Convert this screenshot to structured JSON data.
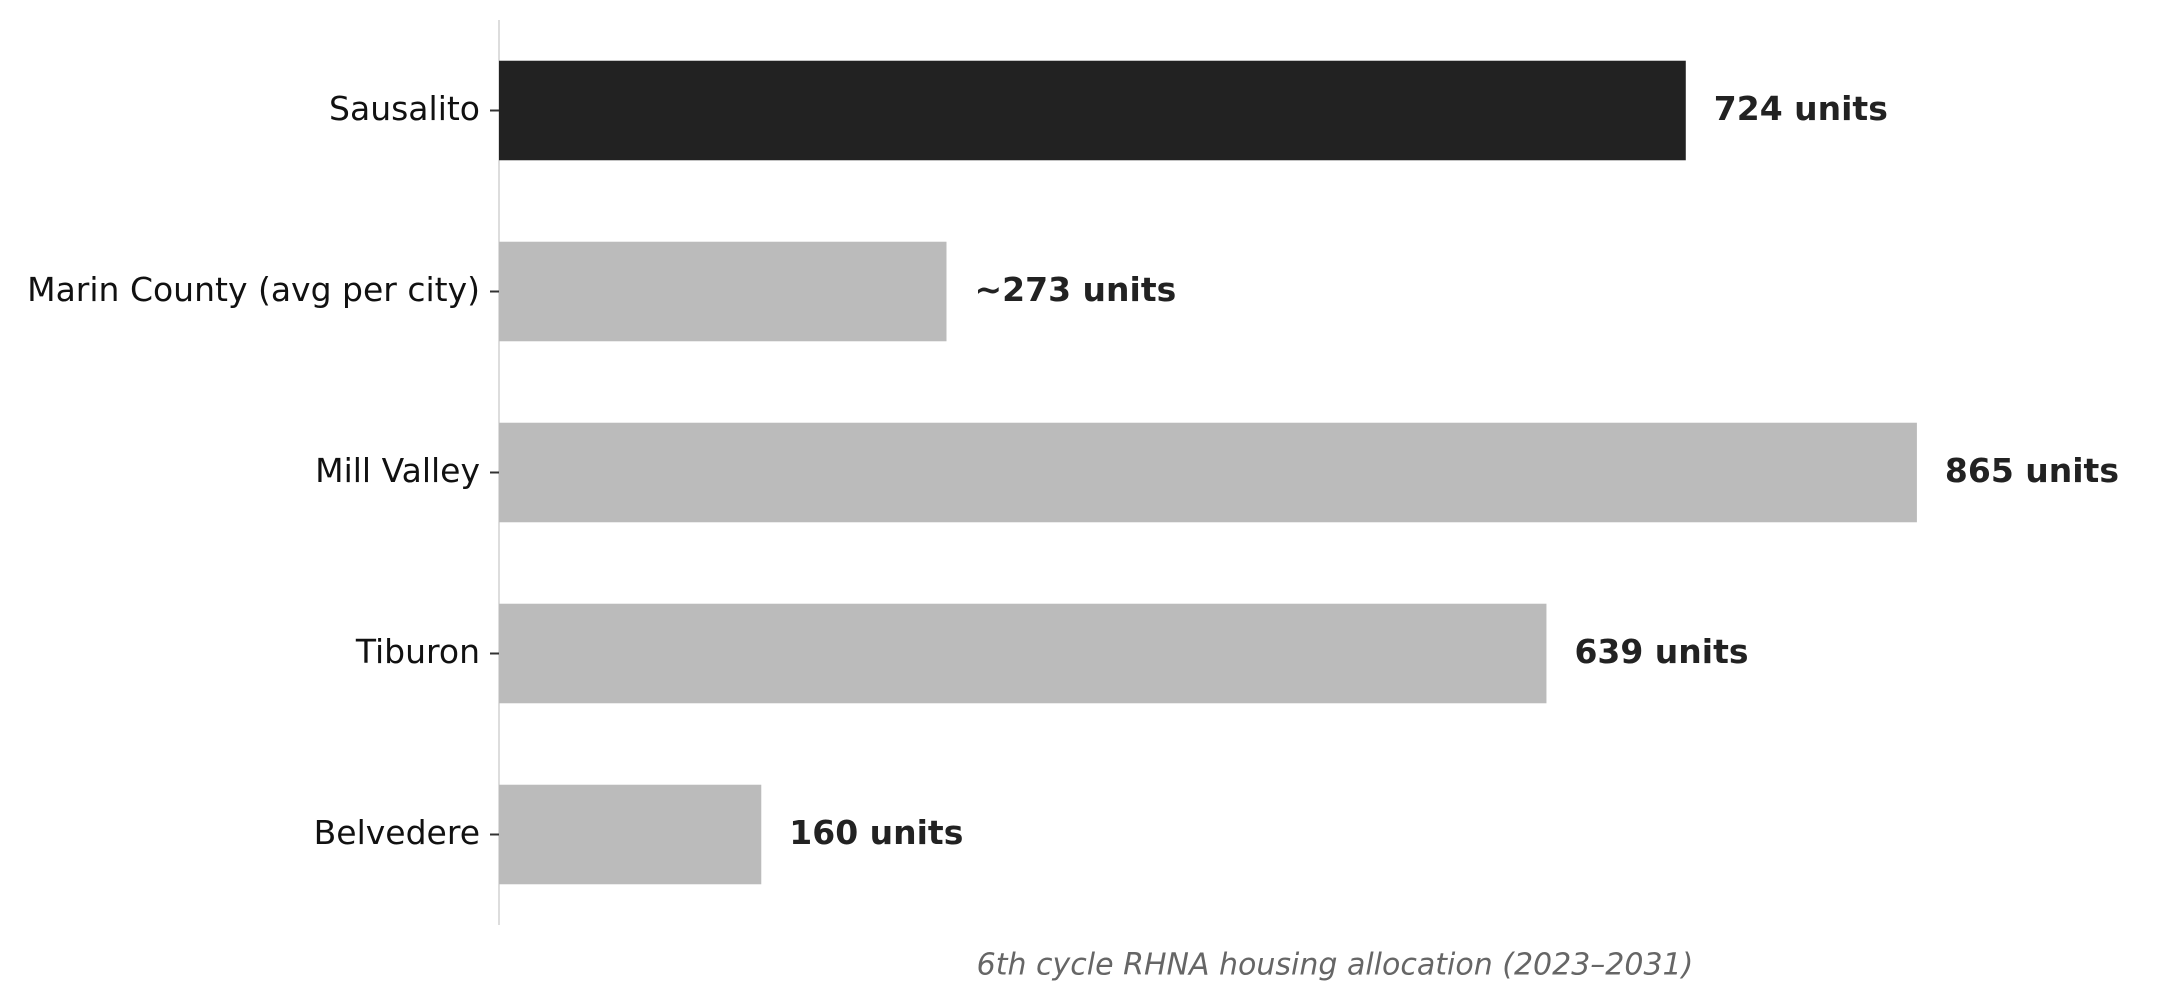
{
  "chart_data": {
    "type": "barh",
    "categories": [
      "Sausalito",
      "Marin County (avg per city)",
      "Mill Valley",
      "Tiburon",
      "Belvedere"
    ],
    "values": [
      724,
      273,
      865,
      639,
      160
    ],
    "value_labels": [
      "724 units",
      "~273 units",
      "865 units",
      "639 units",
      "160 units"
    ],
    "colors": [
      "#222222",
      "#bbbbbb",
      "#bbbbbb",
      "#bbbbbb",
      "#bbbbbb"
    ],
    "xlim": [
      0,
      995
    ],
    "xlabel": "6th cycle RHNA housing allocation (2023–2031)"
  }
}
